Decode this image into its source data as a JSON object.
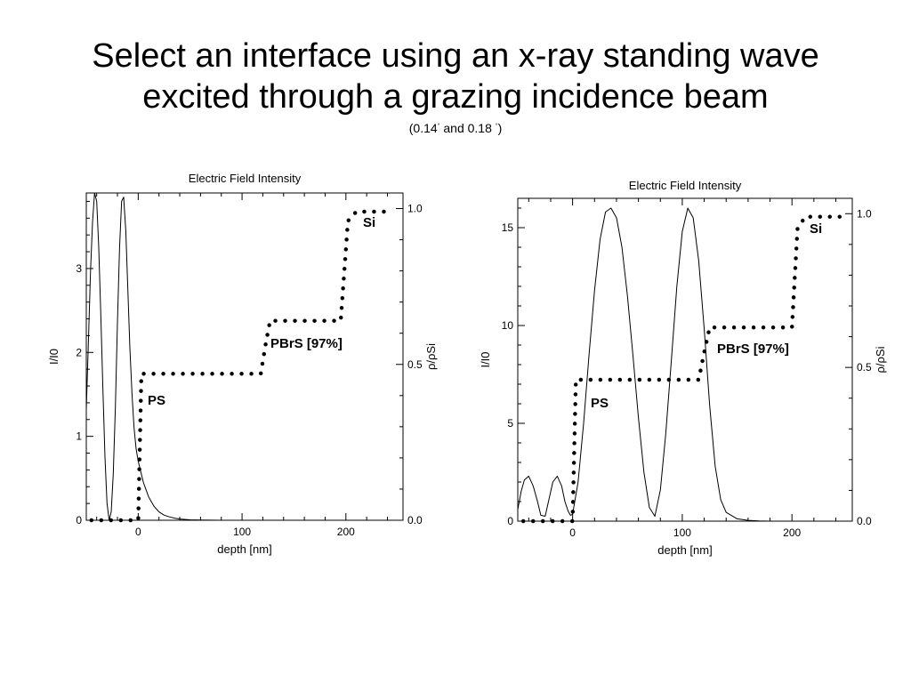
{
  "slide": {
    "title_line1": "Select an interface using an x-ray standing wave",
    "title_line2": "excited through a grazing incidence beam",
    "subtitle_a": "(0.14",
    "subtitle_deg1": "°",
    "subtitle_b": " and 0.18 ",
    "subtitle_deg2": "°",
    "subtitle_c": ")"
  },
  "chart_data": [
    {
      "type": "line",
      "title": "Electric Field Intensity",
      "xlabel": "depth [nm]",
      "ylabel": "I/I0",
      "y2label": "ρ/ρSi",
      "xlim": [
        -50,
        255
      ],
      "ylim": [
        0,
        3.9
      ],
      "y2lim": [
        0,
        1.05
      ],
      "xticks": [
        0,
        100,
        200
      ],
      "yticks": [
        0,
        1,
        2,
        3
      ],
      "y2ticks": [
        "0.0",
        "0.5",
        "1.0"
      ],
      "series": [
        {
          "style": "solid",
          "x": [
            -50,
            -48,
            -46,
            -44,
            -42,
            -40,
            -38,
            -36,
            -34,
            -32,
            -30,
            -28,
            -26,
            -24,
            -22,
            -20,
            -18,
            -16,
            -14,
            -12,
            -10,
            -8,
            -6,
            -4,
            -2,
            0,
            5,
            10,
            15,
            20,
            25,
            30,
            35,
            40,
            50,
            60,
            80,
            100,
            150,
            200,
            250
          ],
          "y": [
            1.32,
            2.1,
            2.95,
            3.55,
            3.9,
            3.8,
            3.25,
            2.45,
            1.55,
            0.75,
            0.2,
            0.0,
            0.1,
            0.55,
            1.35,
            2.35,
            3.25,
            3.8,
            3.85,
            3.45,
            2.75,
            2.05,
            1.5,
            1.1,
            0.85,
            0.7,
            0.45,
            0.28,
            0.17,
            0.1,
            0.06,
            0.04,
            0.025,
            0.015,
            0.005,
            0.002,
            0.0,
            0.0,
            0.0,
            0.0,
            0.0
          ]
        },
        {
          "style": "dotted",
          "axis": "right",
          "x": [
            -45,
            -10,
            -5,
            0,
            3,
            118,
            123,
            127,
            195,
            202,
            210,
            245
          ],
          "y": [
            0.0,
            0.0,
            0.0,
            0.0,
            0.47,
            0.47,
            0.57,
            0.64,
            0.64,
            0.96,
            0.99,
            0.99
          ]
        }
      ],
      "annotations": [
        "PS",
        "PBrS [97%]",
        "Si"
      ]
    },
    {
      "type": "line",
      "title": "Electric Field Intensity",
      "xlabel": "depth [nm]",
      "ylabel": "I/I0",
      "y2label": "ρ/ρSi",
      "xlim": [
        -50,
        255
      ],
      "ylim": [
        0,
        16.5
      ],
      "y2lim": [
        0,
        1.05
      ],
      "xticks": [
        0,
        100,
        200
      ],
      "yticks": [
        0,
        5,
        10,
        15
      ],
      "y2ticks": [
        "0.0",
        "0.5",
        "1.0"
      ],
      "series": [
        {
          "style": "solid",
          "x": [
            -50,
            -47,
            -44,
            -40,
            -36,
            -32,
            -29,
            -25,
            -22,
            -18,
            -14,
            -10,
            -7,
            -4,
            -2,
            0,
            5,
            10,
            15,
            20,
            25,
            30,
            35,
            40,
            45,
            50,
            55,
            60,
            65,
            70,
            75,
            80,
            85,
            90,
            95,
            100,
            105,
            110,
            115,
            120,
            125,
            130,
            135,
            140,
            150,
            160,
            170,
            180,
            200,
            250
          ],
          "y": [
            0.6,
            1.5,
            2.1,
            2.3,
            1.8,
            1.0,
            0.3,
            0.25,
            1.0,
            2.0,
            2.3,
            1.8,
            1.0,
            0.5,
            0.3,
            0.35,
            2.0,
            5.0,
            8.5,
            11.8,
            14.4,
            15.8,
            16.0,
            15.5,
            14.0,
            11.5,
            8.5,
            5.3,
            2.5,
            0.7,
            0.25,
            1.6,
            4.5,
            8.2,
            12.0,
            14.8,
            16.0,
            15.5,
            13.3,
            9.8,
            5.9,
            2.8,
            1.1,
            0.45,
            0.12,
            0.04,
            0.01,
            0.0,
            0.0,
            0.0
          ]
        },
        {
          "style": "dotted",
          "axis": "right",
          "x": [
            -45,
            -5,
            -2,
            0,
            3,
            115,
            120,
            125,
            200,
            205,
            212,
            245
          ],
          "y": [
            0.0,
            0.0,
            0.0,
            0.0,
            0.46,
            0.46,
            0.55,
            0.63,
            0.63,
            0.95,
            0.99,
            0.99
          ]
        }
      ],
      "annotations": [
        "PS",
        "PBrS [97%]",
        "Si"
      ]
    }
  ]
}
